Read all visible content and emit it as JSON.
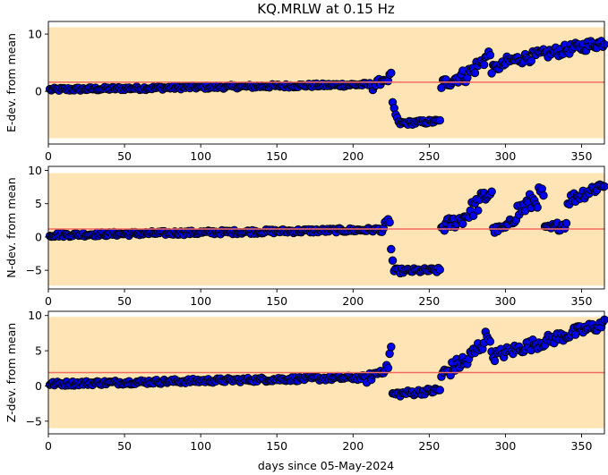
{
  "title": "KQ.MRLW at 0.15 Hz",
  "xlabel": "days since 05-May-2024",
  "colors": {
    "band": "#ffe4b5",
    "mean_line": "#f26b63",
    "marker_fill": "#0000ee",
    "marker_edge": "#000000"
  },
  "chart_data": [
    {
      "type": "scatter",
      "ylabel": "E-dev. from mean",
      "xlim": [
        0,
        365
      ],
      "ylim": [
        -9.2,
        12.2
      ],
      "xticks": [
        0,
        50,
        100,
        150,
        200,
        250,
        300,
        350
      ],
      "yticks": [
        0,
        10
      ],
      "band": [
        -8.2,
        11.2
      ],
      "mean_line": 1.6,
      "segments": [
        {
          "x": [
            1,
            212
          ],
          "y": [
            0.3,
            1.2
          ],
          "noise": 0.3
        },
        {
          "x": [
            213,
            221
          ],
          "y": [
            0.8,
            2.3
          ],
          "noise": 0.6
        },
        {
          "x": [
            222,
            225
          ],
          "y": [
            1.5,
            3.0
          ],
          "noise": 0.5
        },
        {
          "x": [
            226,
            229
          ],
          "y": [
            -2.5,
            -4.8
          ],
          "noise": 0.6
        },
        {
          "x": [
            230,
            257
          ],
          "y": [
            -5.6,
            -5.2
          ],
          "noise": 0.35
        },
        {
          "x": [
            258,
            272
          ],
          "y": [
            1.2,
            2.8
          ],
          "noise": 1.0
        },
        {
          "x": [
            273,
            290
          ],
          "y": [
            2.5,
            6.5
          ],
          "noise": 1.2
        },
        {
          "x": [
            291,
            300
          ],
          "y": [
            3.8,
            4.8
          ],
          "noise": 0.7
        },
        {
          "x": [
            301,
            365
          ],
          "y": [
            5.2,
            8.6
          ],
          "noise": 0.9
        }
      ]
    },
    {
      "type": "scatter",
      "ylabel": "N-dev. from mean",
      "xlim": [
        0,
        365
      ],
      "ylim": [
        -7.8,
        10.6
      ],
      "xticks": [
        0,
        50,
        100,
        150,
        200,
        250,
        300,
        350
      ],
      "yticks": [
        -5,
        0,
        5,
        10
      ],
      "band": [
        -7.3,
        9.6
      ],
      "mean_line": 1.2,
      "segments": [
        {
          "x": [
            1,
            218
          ],
          "y": [
            0.3,
            1.1
          ],
          "noise": 0.3
        },
        {
          "x": [
            219,
            224
          ],
          "y": [
            1.0,
            2.6
          ],
          "noise": 0.6
        },
        {
          "x": [
            225,
            226
          ],
          "y": [
            -2.0,
            -3.5
          ],
          "noise": 0.5
        },
        {
          "x": [
            227,
            257
          ],
          "y": [
            -5.1,
            -5.0
          ],
          "noise": 0.35
        },
        {
          "x": [
            258,
            272
          ],
          "y": [
            1.5,
            2.8
          ],
          "noise": 1.0
        },
        {
          "x": [
            273,
            291
          ],
          "y": [
            3.0,
            7.0
          ],
          "noise": 1.3
        },
        {
          "x": [
            292,
            302
          ],
          "y": [
            1.0,
            1.5
          ],
          "noise": 0.5
        },
        {
          "x": [
            303,
            325
          ],
          "y": [
            3.0,
            6.5
          ],
          "noise": 1.5
        },
        {
          "x": [
            326,
            340
          ],
          "y": [
            1.0,
            2.0
          ],
          "noise": 0.7
        },
        {
          "x": [
            341,
            365
          ],
          "y": [
            5.5,
            8.0
          ],
          "noise": 0.9
        }
      ]
    },
    {
      "type": "scatter",
      "ylabel": "Z-dev. from mean",
      "xlim": [
        0,
        365
      ],
      "ylim": [
        -6.8,
        10.6
      ],
      "xticks": [
        0,
        50,
        100,
        150,
        200,
        250,
        300,
        350
      ],
      "yticks": [
        -5,
        0,
        5,
        10
      ],
      "band": [
        -6.0,
        9.8
      ],
      "mean_line": 1.9,
      "segments": [
        {
          "x": [
            1,
            208
          ],
          "y": [
            0.3,
            1.2
          ],
          "noise": 0.3
        },
        {
          "x": [
            209,
            221
          ],
          "y": [
            1.0,
            2.5
          ],
          "noise": 0.6
        },
        {
          "x": [
            222,
            225
          ],
          "y": [
            2.0,
            5.5
          ],
          "noise": 1.0
        },
        {
          "x": [
            226,
            257
          ],
          "y": [
            -1.2,
            -0.6
          ],
          "noise": 0.4
        },
        {
          "x": [
            258,
            272
          ],
          "y": [
            1.5,
            3.5
          ],
          "noise": 1.0
        },
        {
          "x": [
            273,
            290
          ],
          "y": [
            3.0,
            7.5
          ],
          "noise": 1.2
        },
        {
          "x": [
            291,
            365
          ],
          "y": [
            4.2,
            8.8
          ],
          "noise": 0.8
        }
      ]
    }
  ]
}
